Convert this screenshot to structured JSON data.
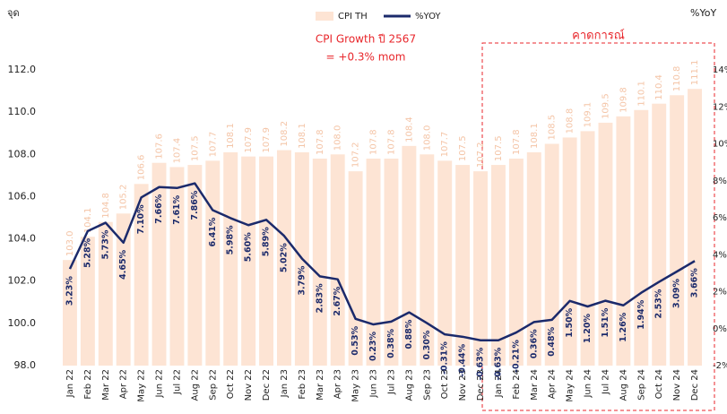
{
  "chart_data": {
    "type": "bar_line",
    "title": "CPI Growth ปี 2567",
    "subtitle": "= +0.3% mom",
    "y_label": "จุด",
    "y2_label": "%YoY",
    "annotation": {
      "text": "คาดการณ์",
      "start": "Jan 24",
      "end": "Dec 24"
    },
    "categories": [
      "Jan 22",
      "Feb 22",
      "Mar 22",
      "Apr 22",
      "May 22",
      "Jun 22",
      "Jul 22",
      "Aug 22",
      "Sep 22",
      "Oct 22",
      "Nov 22",
      "Dec 22",
      "Jan 23",
      "Feb 23",
      "Mar 23",
      "Apr 23",
      "May 23",
      "Jun 23",
      "Jul 23",
      "Aug 23",
      "Sep 23",
      "Oct 23",
      "Nov 23",
      "Dec 23",
      "Jan 24",
      "Feb 24",
      "Mar 24",
      "Apr 24",
      "May 24",
      "Jun 24",
      "Jul 24",
      "Aug 24",
      "Sep 24",
      "Oct 24",
      "Nov 24",
      "Dec 24"
    ],
    "series": [
      {
        "name": "CPI TH",
        "type": "bar",
        "color": "#fde4d4",
        "label_color": "#f4c4a6",
        "values": [
          103.0,
          104.1,
          104.8,
          105.2,
          106.6,
          107.6,
          107.4,
          107.5,
          107.7,
          108.1,
          107.9,
          107.9,
          108.2,
          108.1,
          107.8,
          108.0,
          107.2,
          107.8,
          107.8,
          108.4,
          108.0,
          107.7,
          107.5,
          107.2,
          107.5,
          107.8,
          108.1,
          108.5,
          108.8,
          109.1,
          109.5,
          109.8,
          110.1,
          110.4,
          110.8,
          111.1
        ],
        "value_labels": [
          "103.0",
          "104.1",
          "104.8",
          "105.2",
          "106.6",
          "107.6",
          "107.4",
          "107.5",
          "107.7",
          "108.1",
          "107.9",
          "107.9",
          "108.2",
          "108.1",
          "107.8",
          "108.0",
          "107.2",
          "107.8",
          "107.8",
          "108.4",
          "108.0",
          "107.7",
          "107.5",
          "107.2",
          "107.5",
          "107.8",
          "108.1",
          "108.5",
          "108.8",
          "109.1",
          "109.5",
          "109.8",
          "110.1",
          "110.4",
          "110.8",
          "111.1"
        ]
      },
      {
        "name": "%YOY",
        "type": "line",
        "axis": "y2",
        "color": "#1b2a6b",
        "values": [
          3.23,
          5.28,
          5.73,
          4.65,
          7.1,
          7.66,
          7.61,
          7.86,
          6.41,
          5.98,
          5.6,
          5.89,
          5.02,
          3.79,
          2.83,
          2.67,
          0.53,
          0.23,
          0.38,
          0.88,
          0.3,
          -0.31,
          -0.44,
          -0.63,
          -0.63,
          -0.21,
          0.36,
          0.48,
          1.5,
          1.2,
          1.51,
          1.26,
          1.94,
          2.53,
          3.09,
          3.66
        ],
        "value_labels": [
          "3.23%",
          "5.28%",
          "5.73%",
          "4.65%",
          "7.10%",
          "7.66%",
          "7.61%",
          "7.86%",
          "6.41%",
          "5.98%",
          "5.60%",
          "5.89%",
          "5.02%",
          "3.79%",
          "2.83%",
          "2.67%",
          "0.53%",
          "0.23%",
          "0.38%",
          "0.88%",
          "0.30%",
          "-0.31%",
          "-0.44%",
          "-0.63%",
          "-0.63%",
          "-0.21%",
          "0.36%",
          "0.48%",
          "1.50%",
          "1.20%",
          "1.51%",
          "1.26%",
          "1.94%",
          "2.53%",
          "3.09%",
          "3.66%"
        ]
      }
    ],
    "ylim": [
      98,
      112
    ],
    "yticks": [
      {
        "value": 98,
        "label": "98.0"
      },
      {
        "value": 100,
        "label": "100.0"
      },
      {
        "value": 102,
        "label": "102.0"
      },
      {
        "value": 104,
        "label": "104.0"
      },
      {
        "value": 106,
        "label": "106.0"
      },
      {
        "value": 108,
        "label": "108.0"
      },
      {
        "value": 110,
        "label": "110.0"
      },
      {
        "value": 112,
        "label": "112.0"
      }
    ],
    "y2lim": [
      -2,
      14
    ],
    "y2ticks": [
      {
        "value": -2,
        "label": "-2%"
      },
      {
        "value": 0,
        "label": "0%"
      },
      {
        "value": 2,
        "label": "2%"
      },
      {
        "value": 4,
        "label": "4%"
      },
      {
        "value": 6,
        "label": "6%"
      },
      {
        "value": 8,
        "label": "8%"
      },
      {
        "value": 10,
        "label": "10%"
      },
      {
        "value": 12,
        "label": "12%"
      },
      {
        "value": 14,
        "label": "14%"
      }
    ],
    "legend": "top",
    "annotation_color": "#e8262b"
  }
}
